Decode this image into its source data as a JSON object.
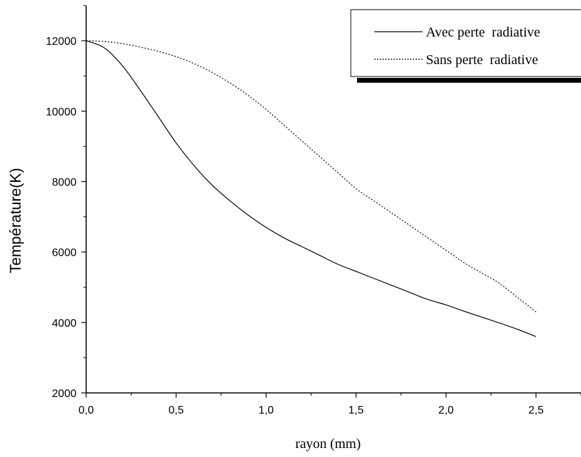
{
  "chart_data": {
    "type": "line",
    "title": "",
    "xlabel": "rayon (mm)",
    "ylabel": "Température(K)",
    "xlim": [
      0,
      2.75
    ],
    "ylim": [
      2000,
      13000
    ],
    "x_ticks": [
      0,
      0.5,
      1.0,
      1.5,
      2.0,
      2.5
    ],
    "x_tick_labels": [
      "0,0",
      "0,5",
      "1,0",
      "1,5",
      "2,0",
      "2,5"
    ],
    "y_ticks": [
      2000,
      4000,
      6000,
      8000,
      10000,
      12000
    ],
    "y_tick_labels": [
      "2000",
      "4000",
      "6000",
      "8000",
      "10000",
      "12000"
    ],
    "grid": false,
    "legend_position": "top-right",
    "series": [
      {
        "name": "Avec perte  radiative",
        "style": "solid",
        "color": "#000000",
        "x": [
          0,
          0.1,
          0.2,
          0.3,
          0.4,
          0.5,
          0.6,
          0.7,
          0.8,
          0.9,
          1.0,
          1.1,
          1.2,
          1.3,
          1.4,
          1.5,
          1.6,
          1.7,
          1.8,
          1.9,
          2.0,
          2.1,
          2.2,
          2.3,
          2.4,
          2.5
        ],
        "y": [
          12000,
          11800,
          11300,
          10600,
          9850,
          9100,
          8450,
          7900,
          7450,
          7050,
          6700,
          6400,
          6150,
          5900,
          5650,
          5450,
          5250,
          5050,
          4850,
          4650,
          4500,
          4320,
          4150,
          3980,
          3800,
          3600
        ]
      },
      {
        "name": "Sans perte  radiative",
        "style": "dotted",
        "color": "#000000",
        "x": [
          0,
          0.1,
          0.2,
          0.3,
          0.4,
          0.5,
          0.6,
          0.7,
          0.8,
          0.9,
          1.0,
          1.1,
          1.2,
          1.3,
          1.4,
          1.5,
          1.6,
          1.7,
          1.8,
          1.9,
          2.0,
          2.1,
          2.2,
          2.3,
          2.4,
          2.5
        ],
        "y": [
          12000,
          11980,
          11920,
          11820,
          11700,
          11550,
          11350,
          11100,
          10800,
          10450,
          10050,
          9600,
          9150,
          8700,
          8250,
          7800,
          7450,
          7100,
          6750,
          6400,
          6050,
          5700,
          5400,
          5100,
          4700,
          4300
        ]
      }
    ]
  }
}
